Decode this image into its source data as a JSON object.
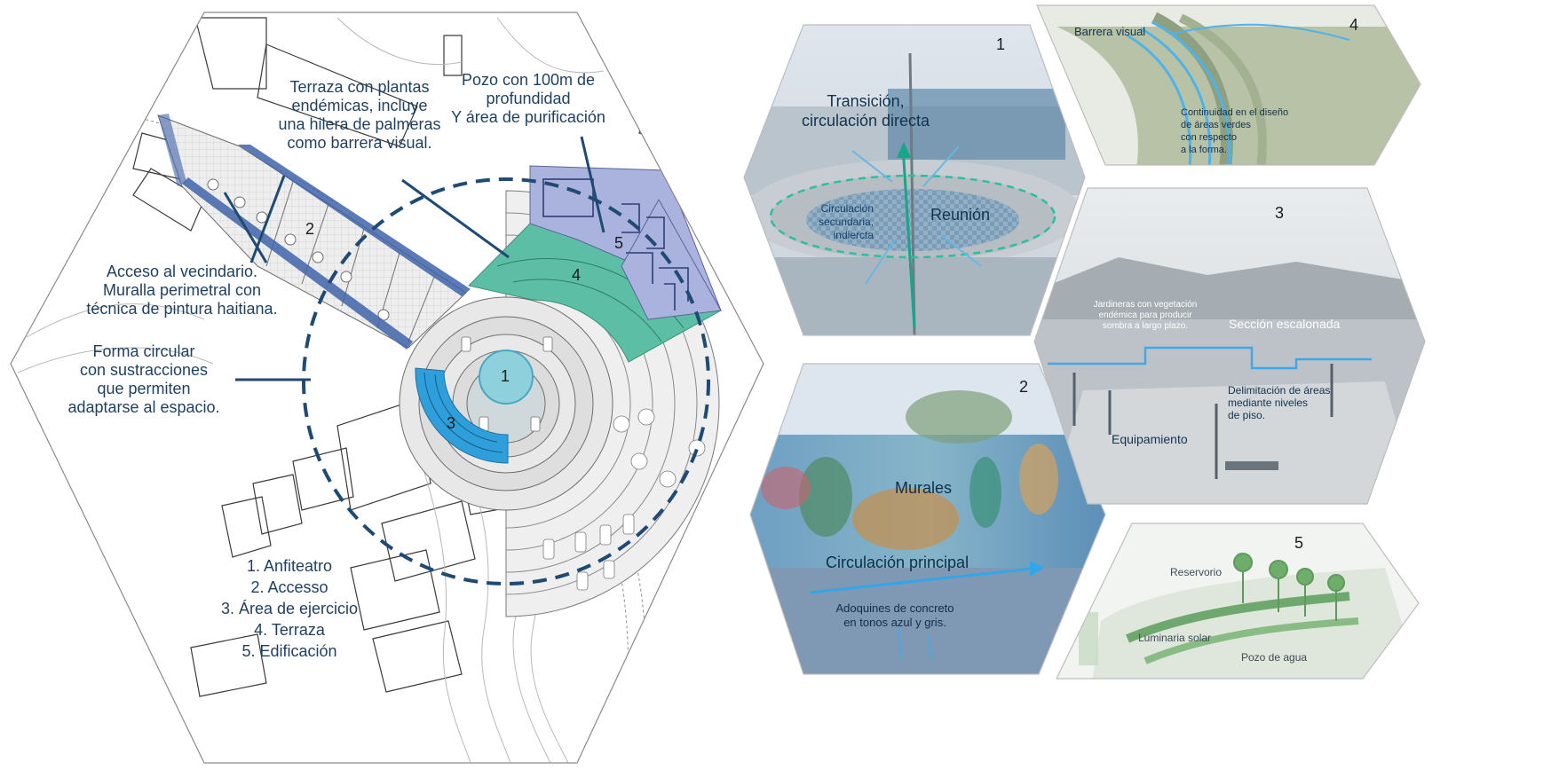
{
  "plan": {
    "labels": {
      "terraza": [
        "Terraza con plantas",
        "endémicas, incluye",
        "una hilera de palmeras",
        "como barrera visual."
      ],
      "pozo": [
        "Pozo con 100m de",
        "profundidad",
        "Y área de purificación"
      ],
      "acceso": [
        "Acceso al vecindario.",
        "Muralla perimetral con",
        "técnica de pintura haitiana."
      ],
      "forma": [
        "Forma circular",
        "con sustracciones",
        "que permiten",
        "adaptarse al espacio."
      ]
    },
    "zone_numbers": [
      "1",
      "2",
      "3",
      "4",
      "5"
    ],
    "legend": [
      "1. Anfiteatro",
      "2. Accesso",
      "3. Área de ejercicio",
      "4. Terraza",
      "5. Edificación"
    ],
    "colors": {
      "line": "#1f4a73",
      "access_band": "#3f63a8",
      "terrace": "#5cbfa5",
      "building": "#a9b3de",
      "exercise": "#2f9fdb",
      "amphitheatre_center": "#8fd0dd"
    }
  },
  "photos": {
    "p1": {
      "number": "1",
      "title": [
        "Transición,",
        "circulación directa"
      ],
      "meeting": "Reunión",
      "secondary": [
        "Circulación",
        "secundaria,",
        "indiercta"
      ]
    },
    "p2": {
      "number": "2",
      "murales": "Murales",
      "main": "Circulación principal",
      "pavers": [
        "Adoquines de concreto",
        "en tonos azul y gris."
      ]
    },
    "p3": {
      "number": "3",
      "planters": [
        "Jardineras con vegetación",
        "endémica para producir",
        "sombra a largo plazo."
      ],
      "section": "Sección escalonada",
      "delim": [
        "Delimitación de áreas",
        "mediante niveles",
        "de piso."
      ],
      "equip": "Equipamiento"
    },
    "p4": {
      "number": "4",
      "barrier": "Barrera visual",
      "continuity": [
        "Continuidad en el diseño",
        "de áreas verdes",
        "con respecto",
        "a la forma."
      ]
    },
    "p5": {
      "number": "5",
      "reservoir": "Reservorio",
      "light": "Luminaria solar",
      "well": "Pozo de agua"
    }
  }
}
